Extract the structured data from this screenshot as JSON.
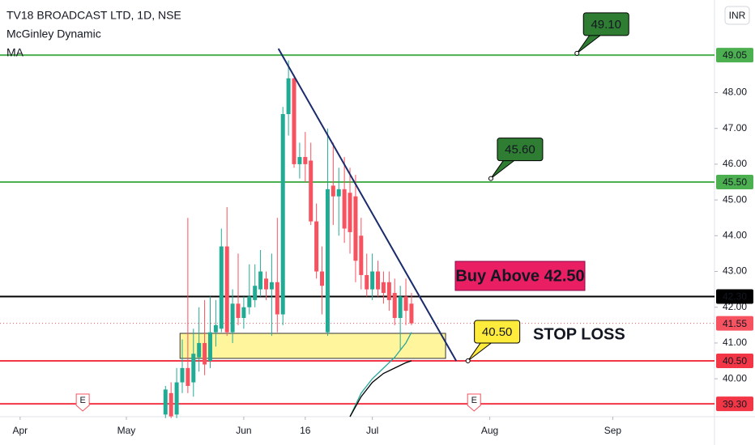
{
  "header": {
    "title": "TV18 BROADCAST LTD, 1D, NSE",
    "currency": "INR"
  },
  "chart_data": {
    "type": "candlestick",
    "x": [
      26,
      27,
      28,
      29,
      30,
      31,
      32,
      33,
      34,
      35,
      36,
      37,
      38,
      39,
      40,
      41,
      42,
      43,
      44,
      45,
      46,
      47,
      48,
      49,
      50,
      51,
      52,
      53,
      54,
      55,
      56,
      57,
      58,
      59,
      60,
      61,
      62,
      63,
      64,
      65,
      66,
      67,
      68,
      69,
      70
    ],
    "open": [
      39.0,
      39.6,
      39.0,
      39.9,
      40.3,
      39.9,
      40.6,
      41.0,
      40.5,
      41.3,
      41.4,
      43.7,
      41.3,
      42.1,
      41.7,
      42.0,
      42.2,
      42.5,
      42.8,
      42.5,
      42.7,
      41.8,
      47.4,
      48.4,
      46.0,
      46.2,
      46.1,
      44.4,
      43.0,
      41.3,
      45.4,
      45.1,
      45.3,
      45.2,
      45.1,
      44.0,
      42.9,
      42.5,
      43.0,
      42.7,
      42.7,
      42.4,
      41.7,
      42.3,
      42.1
    ],
    "high": [
      39.8,
      39.9,
      40.3,
      41.1,
      44.5,
      41.4,
      42.0,
      42.2,
      42.3,
      42.2,
      44.2,
      44.8,
      42.5,
      43.5,
      42.3,
      43.2,
      43.2,
      43.6,
      43.0,
      43.5,
      44.5,
      47.6,
      48.9,
      48.5,
      46.6,
      46.9,
      46.6,
      44.9,
      43.7,
      47.0,
      46.6,
      45.9,
      46.2,
      45.9,
      45.7,
      44.5,
      43.5,
      43.5,
      43.3,
      43.0,
      43.0,
      42.8,
      42.6,
      42.8,
      42.4
    ],
    "low": [
      38.9,
      38.9,
      38.9,
      39.6,
      39.6,
      39.5,
      40.2,
      40.1,
      40.3,
      40.9,
      41.3,
      41.2,
      41.0,
      41.5,
      41.4,
      41.8,
      42.0,
      42.3,
      42.2,
      41.2,
      41.3,
      41.5,
      46.8,
      45.9,
      45.6,
      45.5,
      44.3,
      42.8,
      41.8,
      41.2,
      44.3,
      44.0,
      43.8,
      43.5,
      42.7,
      42.5,
      42.3,
      42.2,
      42.3,
      42.1,
      41.9,
      41.5,
      40.8,
      41.5,
      41.5
    ],
    "close": [
      39.7,
      38.95,
      39.9,
      40.3,
      39.8,
      40.7,
      41.0,
      40.4,
      41.3,
      41.5,
      43.7,
      41.3,
      42.1,
      41.7,
      42.0,
      42.3,
      42.6,
      43.0,
      42.5,
      42.7,
      41.8,
      47.4,
      48.4,
      46.0,
      46.2,
      46.0,
      44.4,
      43.0,
      42.6,
      45.3,
      45.1,
      45.3,
      44.2,
      44.1,
      43.3,
      42.9,
      42.5,
      43.0,
      42.5,
      42.4,
      42.2,
      41.7,
      42.3,
      41.9,
      41.55
    ],
    "up_color": "#22ab94",
    "down_color": "#f7525f",
    "xlim": [
      -3.6,
      124.2
    ],
    "xticks": [
      {
        "value": 0,
        "label": "Apr"
      },
      {
        "value": 19,
        "label": "May"
      },
      {
        "value": 40,
        "label": "Jun"
      },
      {
        "value": 51,
        "label": "16"
      },
      {
        "value": 63,
        "label": "Jul"
      },
      {
        "value": 84,
        "label": "Aug"
      },
      {
        "value": 106,
        "label": "Sep"
      }
    ],
    "ylim": [
      38.94,
      50.59
    ],
    "yticks": [
      {
        "value": 40,
        "label": "40.00"
      },
      {
        "value": 41,
        "label": "41.00"
      },
      {
        "value": 42,
        "label": "42.00"
      },
      {
        "value": 43,
        "label": "43.00"
      },
      {
        "value": 44,
        "label": "44.00"
      },
      {
        "value": 45,
        "label": "45.00"
      },
      {
        "value": 46,
        "label": "46.00"
      },
      {
        "value": 47,
        "label": "47.00"
      },
      {
        "value": 48,
        "label": "48.00"
      }
    ],
    "lines": [
      {
        "name": "McGinley Dynamic",
        "color": "#26a69a",
        "x": [
          59,
          61,
          63,
          65,
          67,
          69,
          70
        ],
        "values": [
          38.94,
          39.6,
          40.0,
          40.3,
          40.6,
          41.0,
          41.3
        ]
      },
      {
        "name": "MA",
        "color": "#000000",
        "x": [
          59,
          61,
          63,
          65,
          67,
          69,
          70
        ],
        "values": [
          38.94,
          39.5,
          39.9,
          40.15,
          40.3,
          40.45,
          40.5
        ]
      }
    ],
    "levels": [
      {
        "value": 49.05,
        "color": "#4caf50"
      },
      {
        "value": 45.5,
        "label": "45.50",
        "color": "#4caf50"
      },
      {
        "value": 42.3,
        "label": "42.30",
        "color": "#000000"
      },
      {
        "value": 40.5,
        "label": "40.50",
        "color": "#f23645"
      },
      {
        "value": 39.3,
        "label": "39.30",
        "color": "#f23645"
      }
    ],
    "last_price": {
      "value": 41.55,
      "color": "#f7525f"
    },
    "trendline": {
      "x": [
        46.2,
        78.0
      ],
      "values": [
        49.23,
        40.5
      ],
      "color": "#1a2b6d"
    },
    "zone": {
      "x": [
        28.6,
        76.1
      ],
      "values": [
        41.27,
        40.57
      ],
      "color": "#fff59d"
    },
    "callouts": [
      {
        "x": 99.6,
        "value": 49.1,
        "label": "49.10",
        "color": "#2e7d32"
      },
      {
        "x": 84.2,
        "value": 45.6,
        "label": "45.60",
        "color": "#2e7d32"
      },
      {
        "x": 80.1,
        "value": 40.5,
        "label": "40.50",
        "color": "#ffeb3b"
      }
    ],
    "annotations": [
      "Buy Above 42.50",
      "STOP LOSS"
    ],
    "events": [
      {
        "x": 11.2,
        "text": "E"
      },
      {
        "x": 81.2,
        "text": "E"
      }
    ]
  }
}
